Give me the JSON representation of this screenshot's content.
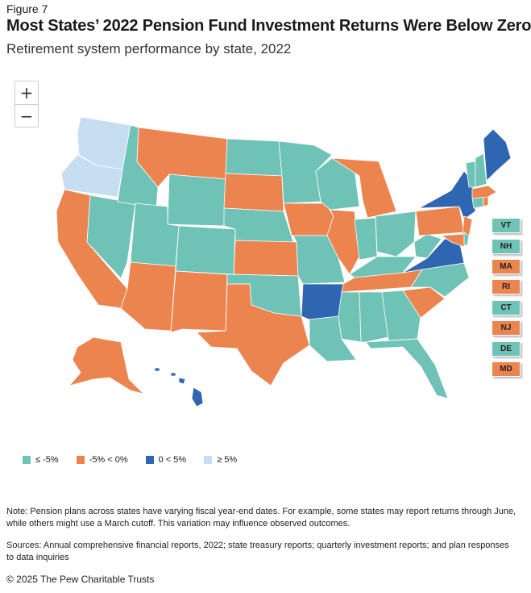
{
  "figure_label": "Figure 7",
  "title": "Most States’ 2022 Pension Fund Investment Returns Were Below Zero",
  "subtitle": "Retirement system performance by state, 2022",
  "zoom": {
    "in": "+",
    "out": "−"
  },
  "colors": {
    "le_neg5": "#6fc2b6",
    "neg5_0": "#ec844f",
    "0_5": "#2f66b2",
    "ge_5": "#c6ddf2"
  },
  "legend": [
    {
      "label": "≤ -5%",
      "color": "#6fc2b6"
    },
    {
      "label": "-5% < 0%",
      "color": "#ec844f"
    },
    {
      "label": "0 < 5%",
      "color": "#2f66b2"
    },
    {
      "label": "≥ 5%",
      "color": "#c6ddf2"
    }
  ],
  "state_boxes": [
    {
      "abbr": "VT",
      "color": "#6fc2b6"
    },
    {
      "abbr": "NH",
      "color": "#6fc2b6"
    },
    {
      "abbr": "MA",
      "color": "#ec844f"
    },
    {
      "abbr": "RI",
      "color": "#ec844f"
    },
    {
      "abbr": "CT",
      "color": "#6fc2b6"
    },
    {
      "abbr": "NJ",
      "color": "#ec844f"
    },
    {
      "abbr": "DE",
      "color": "#6fc2b6"
    },
    {
      "abbr": "MD",
      "color": "#ec844f"
    }
  ],
  "note": "Note: Pension plans across states have varying fiscal year-end dates. For example, some states may report returns through June, while others might use a March cutoff. This variation may influence observed outcomes.",
  "sources": "Sources: Annual comprehensive financial reports, 2022; state treasury reports; quarterly investment reports; and plan responses to data inquiries",
  "copyright": "© 2025 The Pew Charitable Trusts"
}
